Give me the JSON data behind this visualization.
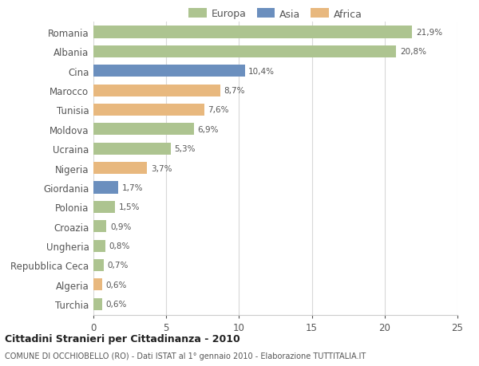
{
  "countries": [
    "Romania",
    "Albania",
    "Cina",
    "Marocco",
    "Tunisia",
    "Moldova",
    "Ucraina",
    "Nigeria",
    "Giordania",
    "Polonia",
    "Croazia",
    "Ungheria",
    "Repubblica Ceca",
    "Algeria",
    "Turchia"
  ],
  "values": [
    21.9,
    20.8,
    10.4,
    8.7,
    7.6,
    6.9,
    5.3,
    3.7,
    1.7,
    1.5,
    0.9,
    0.8,
    0.7,
    0.6,
    0.6
  ],
  "labels": [
    "21,9%",
    "20,8%",
    "10,4%",
    "8,7%",
    "7,6%",
    "6,9%",
    "5,3%",
    "3,7%",
    "1,7%",
    "1,5%",
    "0,9%",
    "0,8%",
    "0,7%",
    "0,6%",
    "0,6%"
  ],
  "continents": [
    "Europa",
    "Europa",
    "Asia",
    "Africa",
    "Africa",
    "Europa",
    "Europa",
    "Africa",
    "Asia",
    "Europa",
    "Europa",
    "Europa",
    "Europa",
    "Africa",
    "Europa"
  ],
  "colors": {
    "Europa": "#adc490",
    "Asia": "#6b8fbe",
    "Africa": "#e8b87e"
  },
  "legend_labels": [
    "Europa",
    "Asia",
    "Africa"
  ],
  "legend_colors": [
    "#adc490",
    "#6b8fbe",
    "#e8b87e"
  ],
  "xlim": [
    0,
    25
  ],
  "xticks": [
    0,
    5,
    10,
    15,
    20,
    25
  ],
  "title": "Cittadini Stranieri per Cittadinanza - 2010",
  "subtitle": "COMUNE DI OCCHIOBELLO (RO) - Dati ISTAT al 1° gennaio 2010 - Elaborazione TUTTITALIA.IT",
  "background_color": "#ffffff",
  "grid_color": "#d8d8d8"
}
